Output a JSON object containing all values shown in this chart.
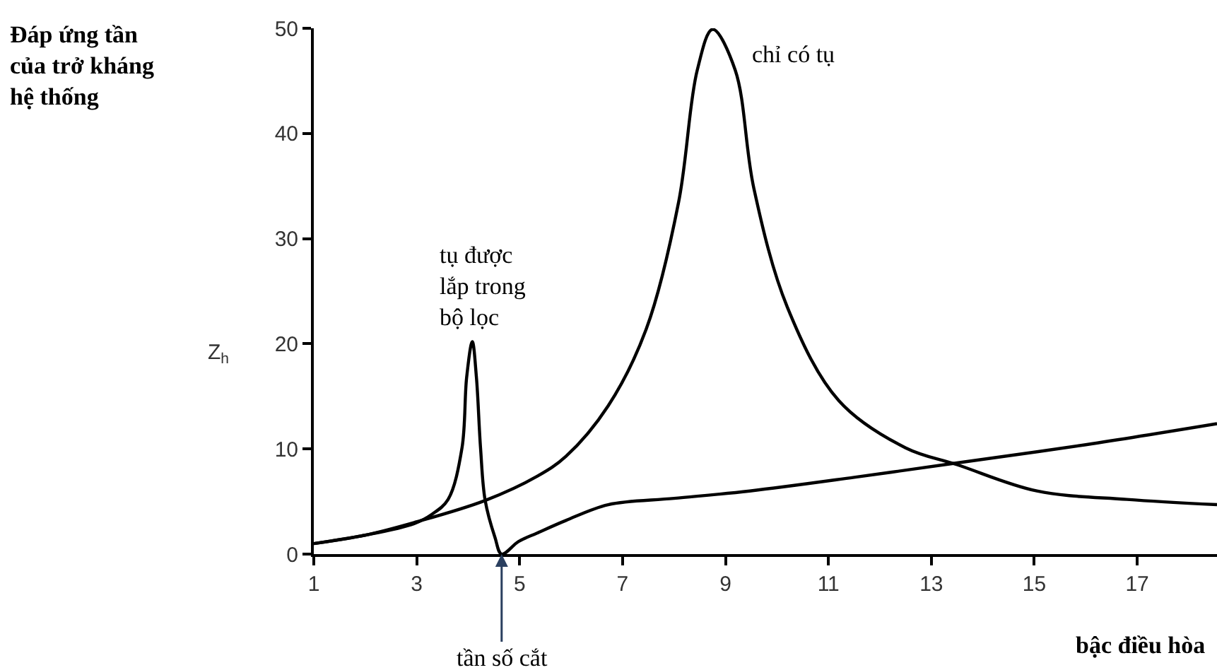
{
  "chart_data": {
    "type": "line",
    "title": "Đáp ứng tần của trở kháng hệ thống",
    "xlabel": "bậc điều hòa",
    "ylabel": "Z$_{h}$",
    "annotations": [
      {
        "text": "tần số cắt",
        "x": 4.65,
        "y": 0
      }
    ],
    "xlim": [
      1,
      18.55
    ],
    "xticks": [
      1,
      3,
      5,
      7,
      9,
      11,
      13,
      15,
      17
    ],
    "ylim": [
      0,
      50
    ],
    "yticks": [
      0,
      10,
      20,
      30,
      40,
      50
    ],
    "legend": false,
    "marker": "none",
    "line_style": "solid",
    "series": [
      {
        "name": "tụ được lắp trong bộ lọc",
        "color": "#000000",
        "x": [
          1,
          2,
          2.95,
          3.3,
          3.61,
          3.88,
          3.97,
          4.08,
          4.16,
          4.24,
          4.33,
          4.52,
          4.65,
          4.98,
          5.34,
          5.9,
          6.72,
          8,
          9.47,
          11.5,
          13.4,
          16,
          18.55
        ],
        "values": [
          1,
          1.8,
          2.9,
          3.8,
          5.2,
          10.1,
          16.8,
          20.2,
          16.8,
          10.1,
          5.1,
          1.6,
          0,
          1.2,
          2.0,
          3.2,
          4.7,
          5.3,
          6.0,
          7.3,
          8.6,
          10.4,
          12.4
        ]
      },
      {
        "name": "chỉ có tụ",
        "color": "#000000",
        "x": [
          1,
          2,
          2.95,
          4.33,
          5.34,
          5.9,
          6.72,
          7.46,
          8.09,
          8.45,
          8.75,
          9.19,
          9.55,
          10.2,
          11.2,
          12.5,
          13.5,
          15.05,
          16.8,
          18.55
        ],
        "values": [
          1,
          1.8,
          3.0,
          5.1,
          7.4,
          9.3,
          14.1,
          21.4,
          33.5,
          46,
          49.9,
          46,
          34.8,
          23.5,
          14.6,
          10.1,
          8.5,
          6.0,
          5.2,
          4.7
        ]
      }
    ]
  }
}
